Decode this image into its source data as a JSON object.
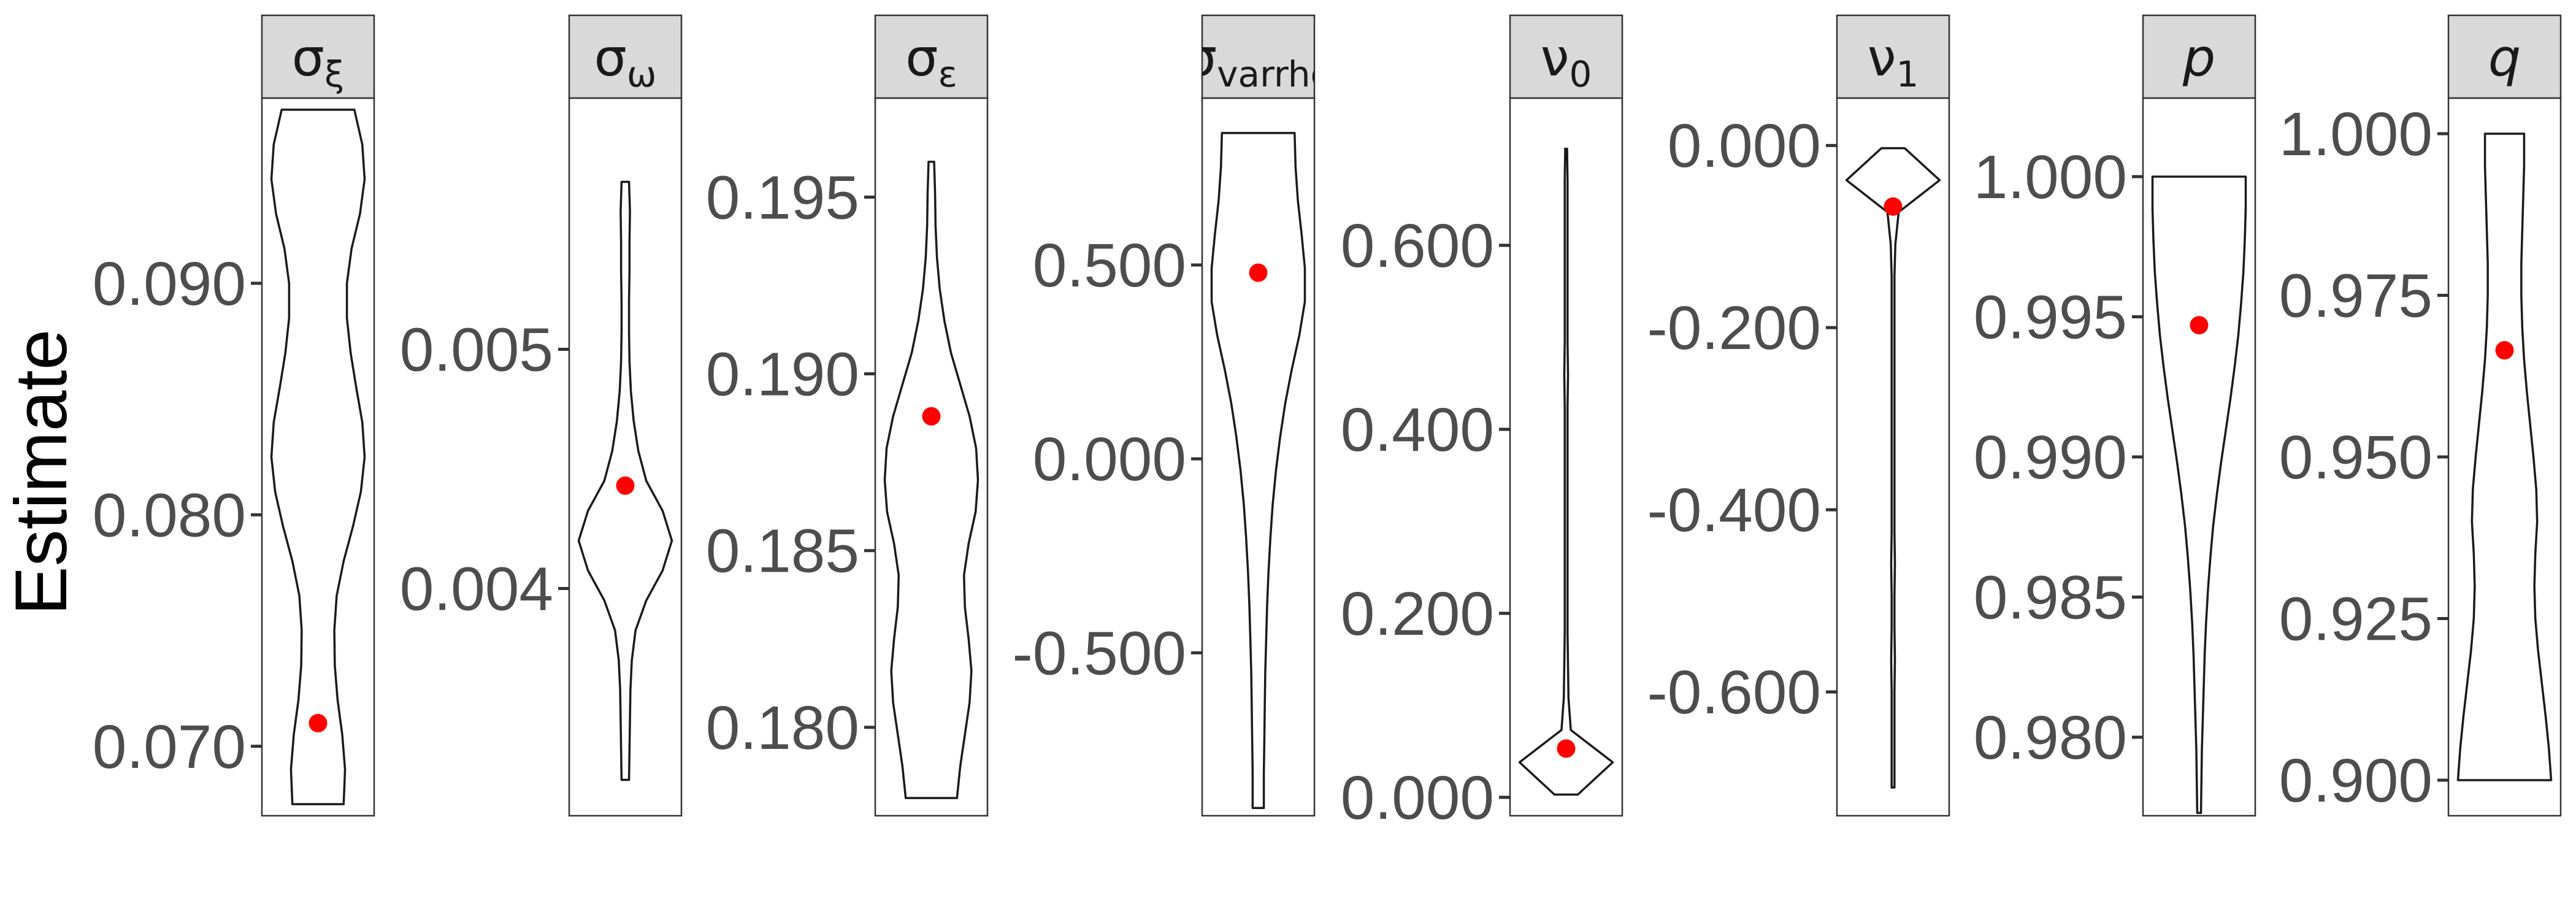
{
  "chart_data": {
    "type": "violin",
    "ylabel": "Estimate",
    "point_color": "#ff0000",
    "panels": [
      {
        "strip": {
          "base": "σ",
          "sub": "ξ",
          "italic": false
        },
        "ylim": [
          0.067,
          0.098
        ],
        "ticks": [
          0.07,
          0.08,
          0.09
        ],
        "tick_labels": [
          "0.070",
          "0.080",
          "0.090"
        ],
        "violin_range": [
          0.0675,
          0.0975
        ],
        "violin_profile": [
          0.55,
          0.58,
          0.52,
          0.42,
          0.36,
          0.35,
          0.4,
          0.55,
          0.75,
          0.92,
          1.0,
          0.95,
          0.82,
          0.7,
          0.62,
          0.62,
          0.72,
          0.9,
          1.0,
          0.95,
          0.78
        ],
        "point": 0.071
      },
      {
        "strip": {
          "base": "σ",
          "sub": "ω",
          "italic": false
        },
        "ylim": [
          0.00305,
          0.00605
        ],
        "ticks": [
          0.004,
          0.005
        ],
        "tick_labels": [
          "0.004",
          "0.005"
        ],
        "violin_range": [
          0.0032,
          0.0057
        ],
        "violin_profile": [
          0.08,
          0.09,
          0.1,
          0.11,
          0.14,
          0.22,
          0.45,
          0.8,
          1.0,
          0.8,
          0.45,
          0.28,
          0.18,
          0.12,
          0.09,
          0.08,
          0.08,
          0.09,
          0.09,
          0.1,
          0.08
        ],
        "point": 0.00443
      },
      {
        "strip": {
          "base": "σ",
          "sub": "ε",
          "italic": false
        },
        "ylim": [
          0.1775,
          0.1978
        ],
        "ticks": [
          0.18,
          0.185,
          0.19,
          0.195
        ],
        "tick_labels": [
          "0.180",
          "0.185",
          "0.190",
          "0.195"
        ],
        "violin_range": [
          0.178,
          0.196
        ],
        "violin_profile": [
          0.55,
          0.62,
          0.72,
          0.82,
          0.86,
          0.8,
          0.72,
          0.7,
          0.8,
          0.95,
          1.0,
          0.96,
          0.82,
          0.62,
          0.42,
          0.28,
          0.18,
          0.12,
          0.09,
          0.08,
          0.06
        ],
        "point": 0.1888
      },
      {
        "strip": {
          "base": "σ",
          "sub": "varrho",
          "italic": false
        },
        "ylim": [
          -0.92,
          0.93
        ],
        "ticks": [
          -0.5,
          0.0,
          0.5
        ],
        "tick_labels": [
          "-0.500",
          "0.000",
          "0.500"
        ],
        "violin_range": [
          -0.9,
          0.84
        ],
        "violin_profile": [
          0.12,
          0.12,
          0.13,
          0.14,
          0.15,
          0.17,
          0.19,
          0.22,
          0.26,
          0.31,
          0.38,
          0.47,
          0.58,
          0.72,
          0.88,
          1.0,
          1.0,
          0.93,
          0.85,
          0.8,
          0.78
        ],
        "point": 0.48
      },
      {
        "strip": {
          "base": "ν",
          "sub": "0",
          "italic": false
        },
        "ylim": [
          -0.02,
          0.76
        ],
        "ticks": [
          0.0,
          0.2,
          0.4,
          0.6
        ],
        "tick_labels": [
          "0.000",
          "0.200",
          "0.400",
          "0.600"
        ],
        "violin_range": [
          0.003,
          0.705
        ],
        "violin_profile": [
          0.25,
          1.0,
          0.1,
          0.05,
          0.04,
          0.03,
          0.03,
          0.03,
          0.03,
          0.03,
          0.03,
          0.03,
          0.03,
          0.04,
          0.03,
          0.03,
          0.03,
          0.03,
          0.03,
          0.03,
          0.02
        ],
        "point": 0.053
      },
      {
        "strip": {
          "base": "ν",
          "sub": "1",
          "italic": false
        },
        "ylim": [
          -0.736,
          0.052
        ],
        "ticks": [
          -0.6,
          -0.4,
          -0.2,
          0.0
        ],
        "tick_labels": [
          "-0.600",
          "-0.400",
          "-0.200",
          "0.000"
        ],
        "violin_range": [
          -0.705,
          -0.003
        ],
        "violin_profile": [
          0.03,
          0.03,
          0.03,
          0.03,
          0.04,
          0.03,
          0.03,
          0.04,
          0.03,
          0.03,
          0.03,
          0.03,
          0.03,
          0.03,
          0.03,
          0.03,
          0.03,
          0.05,
          0.12,
          1.0,
          0.25
        ],
        "point": -0.067
      },
      {
        "strip": {
          "base": "p",
          "sub": "",
          "italic": true
        },
        "ylim": [
          0.9772,
          1.0028
        ],
        "ticks": [
          0.98,
          0.985,
          0.99,
          0.995,
          1.0
        ],
        "tick_labels": [
          "0.980",
          "0.985",
          "0.990",
          "0.995",
          "1.000"
        ],
        "violin_range": [
          0.9773,
          1.0
        ],
        "violin_profile": [
          0.04,
          0.05,
          0.06,
          0.08,
          0.1,
          0.12,
          0.15,
          0.19,
          0.24,
          0.3,
          0.38,
          0.47,
          0.57,
          0.67,
          0.76,
          0.84,
          0.9,
          0.95,
          0.98,
          1.0,
          1.0
        ],
        "point": 0.9947
      },
      {
        "strip": {
          "base": "q",
          "sub": "",
          "italic": true
        },
        "ylim": [
          0.8945,
          1.0055
        ],
        "ticks": [
          0.9,
          0.925,
          0.95,
          0.975,
          1.0
        ],
        "tick_labels": [
          "0.900",
          "0.925",
          "0.950",
          "0.975",
          "1.000"
        ],
        "violin_range": [
          0.9,
          1.0
        ],
        "violin_profile": [
          1.0,
          0.95,
          0.88,
          0.8,
          0.72,
          0.66,
          0.64,
          0.66,
          0.7,
          0.68,
          0.62,
          0.55,
          0.48,
          0.42,
          0.38,
          0.36,
          0.36,
          0.38,
          0.4,
          0.42,
          0.42
        ],
        "point": 0.9665
      }
    ]
  }
}
